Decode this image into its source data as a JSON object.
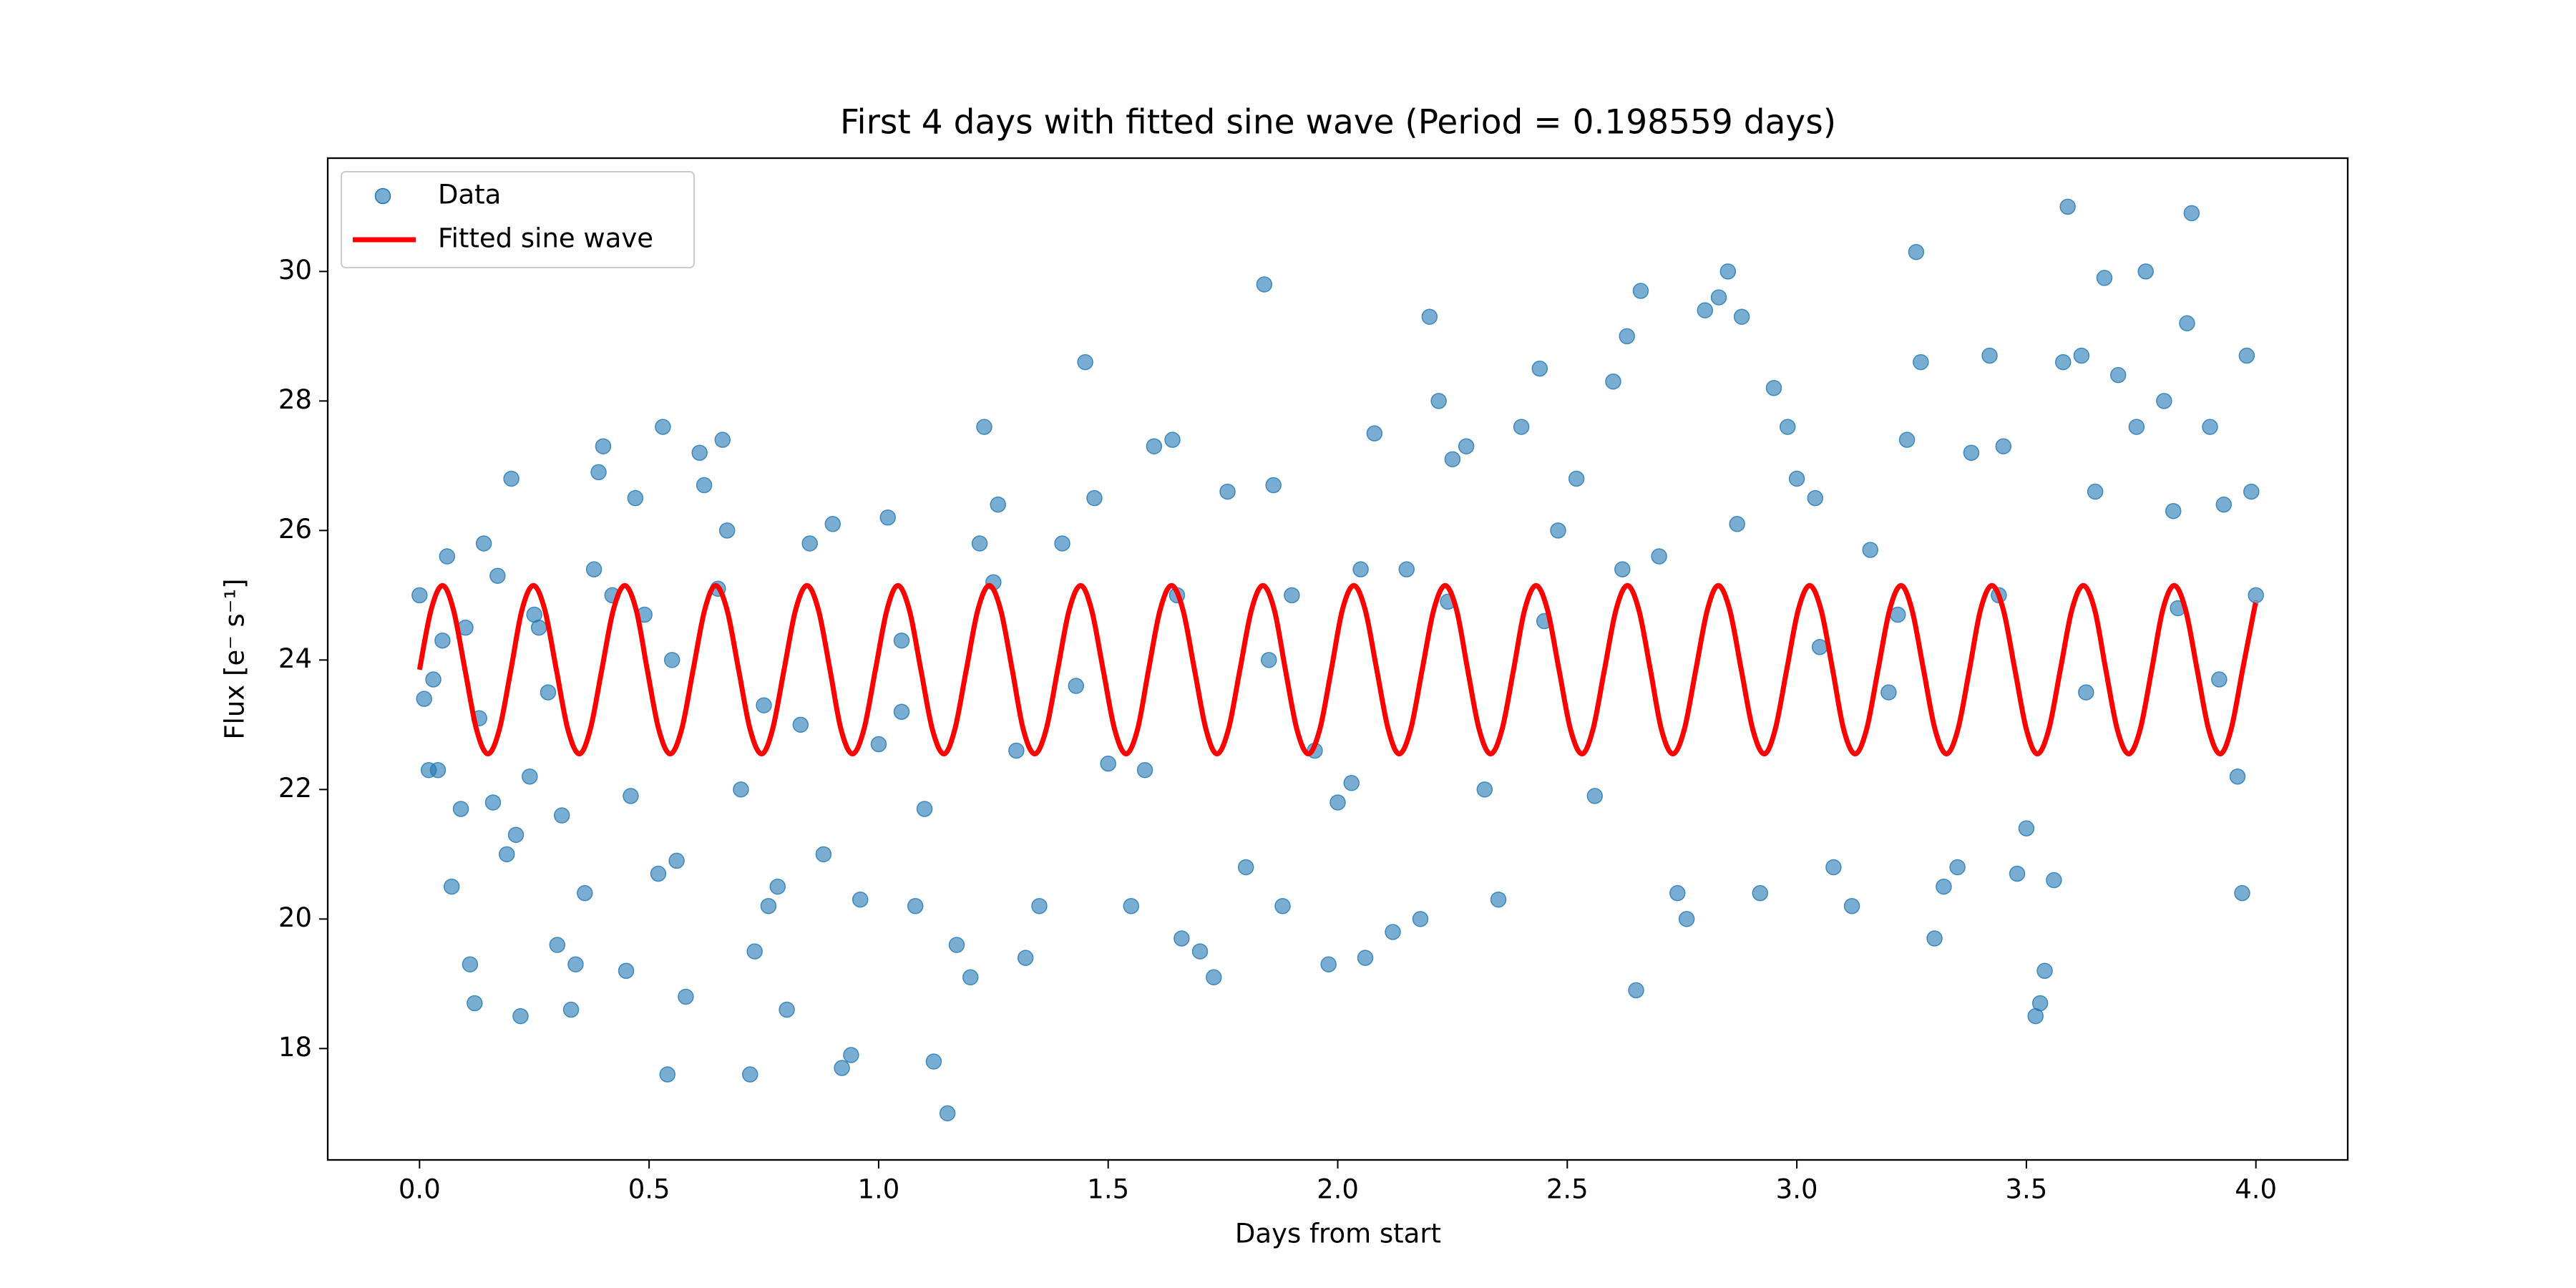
{
  "chart_data": {
    "type": "scatter",
    "title": "First 4 days with fitted sine wave (Period = 0.198559 days)",
    "x_label": "Days from start",
    "y_label": "Flux [e⁻ s⁻¹]",
    "xlim": [
      -0.2,
      4.2
    ],
    "ylim": [
      16.28,
      31.75
    ],
    "xticks": [
      {
        "value": 0,
        "label": "0.0"
      },
      {
        "value": 0.5,
        "label": "0.5"
      },
      {
        "value": 1,
        "label": "1.0"
      },
      {
        "value": 1.5,
        "label": "1.5"
      },
      {
        "value": 2,
        "label": "2.0"
      },
      {
        "value": 2.5,
        "label": "2.5"
      },
      {
        "value": 3,
        "label": "3.0"
      },
      {
        "value": 3.5,
        "label": "3.5"
      },
      {
        "value": 4,
        "label": "4.0"
      }
    ],
    "yticks": [
      18,
      20,
      22,
      24,
      26,
      28,
      30
    ],
    "grid": false,
    "legend": "upper left",
    "series": [
      {
        "name": "Data",
        "type": "scatter",
        "color": "#1f77b4",
        "x": [
          0.0,
          0.01,
          0.02,
          0.03,
          0.04,
          0.05,
          0.06,
          0.07,
          0.09,
          0.1,
          0.11,
          0.12,
          0.13,
          0.14,
          0.16,
          0.17,
          0.19,
          0.2,
          0.21,
          0.22,
          0.24,
          0.26,
          0.28,
          0.3,
          0.31,
          0.33,
          0.34,
          0.36,
          0.38,
          0.39,
          0.4,
          0.42,
          0.45,
          0.46,
          0.47,
          0.49,
          0.52,
          0.53,
          0.54,
          0.56,
          0.58,
          0.61,
          0.62,
          0.65,
          0.66,
          0.67,
          0.7,
          0.72,
          0.73,
          0.76,
          0.78,
          0.8,
          0.83,
          0.85,
          0.88,
          0.9,
          0.92,
          0.94,
          0.96,
          1.0,
          1.02,
          1.05,
          1.08,
          1.1,
          1.12,
          1.15,
          1.17,
          1.2,
          1.22,
          1.23,
          1.26,
          1.3,
          1.32,
          1.35,
          1.4,
          1.45,
          1.47,
          1.5,
          1.55,
          1.58,
          1.6,
          1.64,
          1.66,
          1.7,
          1.73,
          1.76,
          1.8,
          1.84,
          1.86,
          1.88,
          1.9,
          1.95,
          1.98,
          2.0,
          2.03,
          2.06,
          2.08,
          2.12,
          2.15,
          2.18,
          2.2,
          2.22,
          2.25,
          2.28,
          2.32,
          2.35,
          2.4,
          2.44,
          2.48,
          2.52,
          2.56,
          2.6,
          2.63,
          2.65,
          2.66,
          2.7,
          2.74,
          2.76,
          2.8,
          2.83,
          2.85,
          2.88,
          2.92,
          2.95,
          2.98,
          3.0,
          3.04,
          3.08,
          3.12,
          3.16,
          3.2,
          3.24,
          3.26,
          3.27,
          3.3,
          3.32,
          3.35,
          3.38,
          3.42,
          3.45,
          3.48,
          3.5,
          3.52,
          3.53,
          3.54,
          3.56,
          3.58,
          3.59,
          3.62,
          3.65,
          3.67,
          3.7,
          3.74,
          3.76,
          3.8,
          3.82,
          3.85,
          3.86,
          3.9,
          3.93,
          3.96,
          3.97,
          3.98,
          3.99,
          4.0,
          0.25,
          0.55,
          0.75,
          1.05,
          1.25,
          1.43,
          1.65,
          1.85,
          2.05,
          2.24,
          2.45,
          2.62,
          2.87,
          3.05,
          3.22,
          3.44,
          3.63,
          3.83,
          3.92
        ],
        "values": [
          25.0,
          23.4,
          22.3,
          23.7,
          22.3,
          24.3,
          25.6,
          20.5,
          21.7,
          24.5,
          19.3,
          18.7,
          23.1,
          25.8,
          21.8,
          25.3,
          21.0,
          26.8,
          21.3,
          18.5,
          22.2,
          24.5,
          23.5,
          19.6,
          21.6,
          18.6,
          19.3,
          20.4,
          25.4,
          26.9,
          27.3,
          25.0,
          19.2,
          21.9,
          26.5,
          24.7,
          20.7,
          27.6,
          17.6,
          20.9,
          18.8,
          27.2,
          26.7,
          25.1,
          27.4,
          26.0,
          22.0,
          17.6,
          19.5,
          20.2,
          20.5,
          18.6,
          23.0,
          25.8,
          21.0,
          26.1,
          17.7,
          17.9,
          20.3,
          22.7,
          26.2,
          23.2,
          20.2,
          21.7,
          17.8,
          17.0,
          19.6,
          19.1,
          25.8,
          27.6,
          26.4,
          22.6,
          19.4,
          20.2,
          25.8,
          28.6,
          26.5,
          22.4,
          20.2,
          22.3,
          27.3,
          27.4,
          19.7,
          19.5,
          19.1,
          26.6,
          20.8,
          29.8,
          26.7,
          20.2,
          25.0,
          22.6,
          19.3,
          21.8,
          22.1,
          19.4,
          27.5,
          19.8,
          25.4,
          20.0,
          29.3,
          28.0,
          27.1,
          27.3,
          22.0,
          20.3,
          27.6,
          28.5,
          26.0,
          26.8,
          21.9,
          28.3,
          29.0,
          18.9,
          29.7,
          25.6,
          20.4,
          20.0,
          29.4,
          29.6,
          30.0,
          29.3,
          20.4,
          28.2,
          27.6,
          26.8,
          26.5,
          20.8,
          20.2,
          25.7,
          23.5,
          27.4,
          30.3,
          28.6,
          19.7,
          20.5,
          20.8,
          27.2,
          28.7,
          27.3,
          20.7,
          21.4,
          18.5,
          18.7,
          19.2,
          20.6,
          28.6,
          31.0,
          28.7,
          26.6,
          29.9,
          28.4,
          27.6,
          30.0,
          28.0,
          26.3,
          29.2,
          30.9,
          27.6,
          26.4,
          22.2,
          20.4,
          28.7,
          26.6,
          25.0,
          24.7,
          24.0,
          23.3,
          24.3,
          25.2,
          23.6,
          25.0,
          24.0,
          25.4,
          24.9,
          24.6,
          25.4,
          26.1,
          24.2,
          24.7,
          25.0,
          23.5,
          24.8,
          23.7
        ]
      },
      {
        "name": "Fitted sine wave",
        "type": "line",
        "color": "#ff0000",
        "x": [
          0,
          0.025,
          0.05,
          0.074,
          0.099,
          0.124,
          0.149,
          0.174,
          0.199,
          0.223,
          0.248,
          0.273,
          0.298,
          0.323,
          0.348,
          0.372,
          0.397,
          0.422,
          0.447,
          0.472,
          0.496,
          0.521,
          0.546,
          0.571,
          0.596,
          0.621,
          0.645,
          0.67,
          0.695,
          0.72,
          0.745,
          0.769,
          0.794,
          0.819,
          0.844,
          0.869,
          0.894,
          0.918,
          0.943,
          0.968,
          0.993,
          1.018,
          1.042,
          1.067,
          1.092,
          1.117,
          1.142,
          1.166,
          1.191,
          1.216,
          1.241,
          1.266,
          1.291,
          1.315,
          1.34,
          1.365,
          1.39,
          1.415,
          1.44,
          1.464,
          1.489,
          1.514,
          1.539,
          1.564,
          1.588,
          1.613,
          1.638,
          1.663,
          1.688,
          1.713,
          1.737,
          1.762,
          1.787,
          1.812,
          1.837,
          1.862,
          1.886,
          1.911,
          1.936,
          1.961,
          1.986,
          2.01,
          2.035,
          2.06,
          2.085,
          2.11,
          2.134,
          2.159,
          2.184,
          2.209,
          2.234,
          2.259,
          2.283,
          2.308,
          2.333,
          2.358,
          2.383,
          2.407,
          2.432,
          2.457,
          2.482,
          2.507,
          2.532,
          2.556,
          2.581,
          2.606,
          2.631,
          2.656,
          2.681,
          2.705,
          2.73,
          2.755,
          2.78,
          2.805,
          2.829,
          2.854,
          2.879,
          2.904,
          2.929,
          2.953,
          2.978,
          3.003,
          3.028,
          3.053,
          3.078,
          3.102,
          3.127,
          3.152,
          3.177,
          3.202,
          3.227,
          3.251,
          3.276,
          3.301,
          3.326,
          3.351,
          3.376,
          3.4,
          3.425,
          3.45,
          3.475,
          3.5,
          3.524,
          3.549,
          3.574,
          3.599,
          3.624,
          3.649,
          3.673,
          3.698,
          3.723,
          3.748,
          3.773,
          3.797,
          3.822,
          3.847,
          3.872,
          3.897,
          3.922,
          3.946,
          3.971,
          3.996,
          4.0
        ],
        "values": [
          23.85,
          24.77,
          25.15,
          24.77,
          23.85,
          22.93,
          22.55,
          22.93,
          23.85,
          24.77,
          25.15,
          24.77,
          23.85,
          22.93,
          22.55,
          22.93,
          23.85,
          24.77,
          25.15,
          24.77,
          23.85,
          22.93,
          22.55,
          22.93,
          23.85,
          24.77,
          25.15,
          24.77,
          23.85,
          22.93,
          22.55,
          22.93,
          23.85,
          24.77,
          25.15,
          24.77,
          23.85,
          22.93,
          22.55,
          22.93,
          23.85,
          24.77,
          25.15,
          24.77,
          23.85,
          22.93,
          22.55,
          22.93,
          23.85,
          24.77,
          25.15,
          24.77,
          23.85,
          22.93,
          22.55,
          22.93,
          23.85,
          24.77,
          25.15,
          24.77,
          23.85,
          22.93,
          22.55,
          22.93,
          23.85,
          24.77,
          25.15,
          24.77,
          23.85,
          22.93,
          22.55,
          22.93,
          23.85,
          24.77,
          25.15,
          24.77,
          23.85,
          22.93,
          22.55,
          22.93,
          23.85,
          24.77,
          25.15,
          24.77,
          23.85,
          22.93,
          22.55,
          22.93,
          23.85,
          24.77,
          25.15,
          24.77,
          23.85,
          22.93,
          22.55,
          22.93,
          23.85,
          24.77,
          25.15,
          24.77,
          23.85,
          22.93,
          22.55,
          22.93,
          23.85,
          24.77,
          25.15,
          24.77,
          23.85,
          22.93,
          22.55,
          22.93,
          23.85,
          24.77,
          25.15,
          24.77,
          23.85,
          22.93,
          22.55,
          22.93,
          23.85,
          24.77,
          25.15,
          24.77,
          23.85,
          22.93,
          22.55,
          22.93,
          23.85,
          24.77,
          25.15,
          24.77,
          23.85,
          22.93,
          22.55,
          22.93,
          23.85,
          24.77,
          25.15,
          24.77,
          23.85,
          22.93,
          22.55,
          22.93,
          23.85,
          24.77,
          25.15,
          24.77,
          23.85,
          22.93,
          22.55,
          22.93,
          23.85,
          24.77,
          25.15,
          24.77,
          23.85,
          22.93,
          22.55,
          22.93,
          23.85,
          24.77,
          24.88
        ]
      }
    ]
  }
}
